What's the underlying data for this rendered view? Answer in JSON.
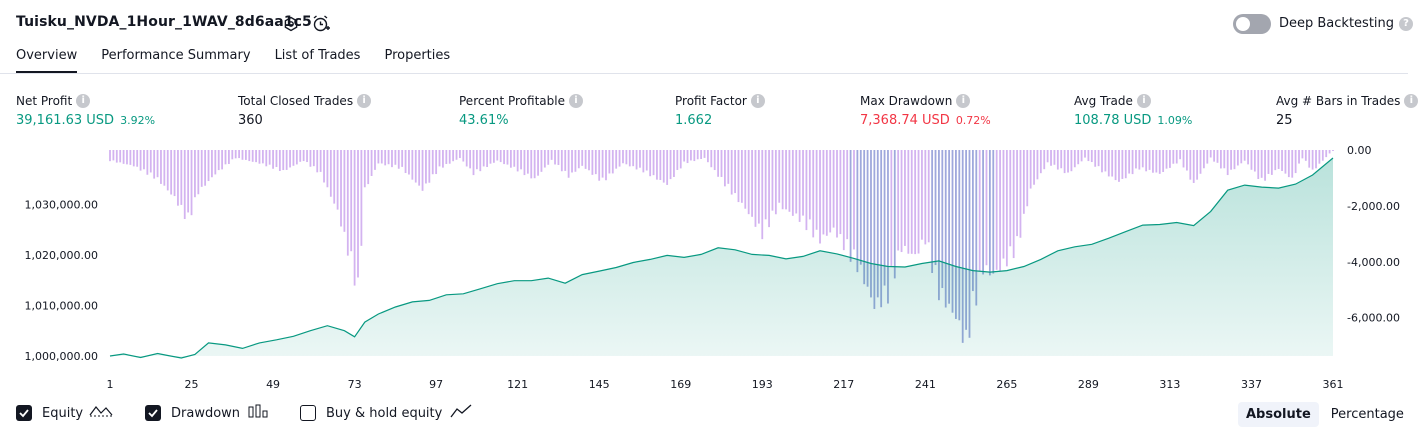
{
  "header": {
    "title": "Tuisku_NVDA_1Hour_1WAV_8d6aa1c5",
    "deep_backtesting_label": "Deep Backtesting"
  },
  "tabs": [
    {
      "label": "Overview",
      "active": true
    },
    {
      "label": "Performance Summary",
      "active": false
    },
    {
      "label": "List of Trades",
      "active": false
    },
    {
      "label": "Properties",
      "active": false
    }
  ],
  "metrics": [
    {
      "label": "Net Profit",
      "value": "39,161.63 USD",
      "pct": "3.92%",
      "color": "#089981"
    },
    {
      "label": "Total Closed Trades",
      "value": "360",
      "pct": "",
      "color": "#131722"
    },
    {
      "label": "Percent Profitable",
      "value": "43.61%",
      "pct": "",
      "color": "#089981"
    },
    {
      "label": "Profit Factor",
      "value": "1.662",
      "pct": "",
      "color": "#089981"
    },
    {
      "label": "Max Drawdown",
      "value": "7,368.74 USD",
      "pct": "0.72%",
      "color": "#f23645"
    },
    {
      "label": "Avg Trade",
      "value": "108.78 USD",
      "pct": "1.09%",
      "color": "#089981"
    },
    {
      "label": "Avg # Bars in Trades",
      "value": "25",
      "pct": "",
      "color": "#131722"
    }
  ],
  "chart_data": {
    "type": "area",
    "equity_axis": {
      "ticks": [
        "1,030,000.00",
        "1,020,000.00",
        "1,010,000.00",
        "1,000,000.00"
      ],
      "range": [
        1000000,
        1039161.63
      ]
    },
    "drawdown_axis": {
      "ticks": [
        "0.00",
        "-2,000.00",
        "-4,000.00",
        "-6,000.00"
      ],
      "range": [
        -7368.74,
        0
      ]
    },
    "x_ticks": [
      "1",
      "25",
      "49",
      "73",
      "97",
      "121",
      "145",
      "169",
      "193",
      "217",
      "241",
      "265",
      "289",
      "313",
      "337",
      "361"
    ],
    "x_range": [
      1,
      361
    ],
    "series": [
      {
        "name": "Equity",
        "color": "#089981",
        "points": [
          [
            1,
            1000000
          ],
          [
            5,
            1000400
          ],
          [
            10,
            999700
          ],
          [
            15,
            1000500
          ],
          [
            18,
            1000100
          ],
          [
            22,
            999600
          ],
          [
            26,
            1000300
          ],
          [
            30,
            1002600
          ],
          [
            35,
            1002200
          ],
          [
            40,
            1001500
          ],
          [
            45,
            1002600
          ],
          [
            50,
            1003200
          ],
          [
            55,
            1003900
          ],
          [
            60,
            1005000
          ],
          [
            65,
            1006000
          ],
          [
            70,
            1005000
          ],
          [
            73,
            1003800
          ],
          [
            76,
            1006700
          ],
          [
            80,
            1008300
          ],
          [
            85,
            1009700
          ],
          [
            90,
            1010700
          ],
          [
            95,
            1011000
          ],
          [
            100,
            1012100
          ],
          [
            105,
            1012300
          ],
          [
            110,
            1013300
          ],
          [
            115,
            1014300
          ],
          [
            120,
            1014900
          ],
          [
            125,
            1014900
          ],
          [
            130,
            1015400
          ],
          [
            135,
            1014400
          ],
          [
            140,
            1016100
          ],
          [
            145,
            1016800
          ],
          [
            150,
            1017500
          ],
          [
            155,
            1018500
          ],
          [
            160,
            1019100
          ],
          [
            165,
            1019900
          ],
          [
            170,
            1019500
          ],
          [
            175,
            1020100
          ],
          [
            180,
            1021400
          ],
          [
            185,
            1021000
          ],
          [
            190,
            1020100
          ],
          [
            195,
            1019900
          ],
          [
            200,
            1019200
          ],
          [
            205,
            1019700
          ],
          [
            210,
            1020800
          ],
          [
            215,
            1020200
          ],
          [
            220,
            1019300
          ],
          [
            225,
            1018300
          ],
          [
            230,
            1017700
          ],
          [
            235,
            1017600
          ],
          [
            240,
            1018300
          ],
          [
            245,
            1018800
          ],
          [
            250,
            1017700
          ],
          [
            255,
            1016900
          ],
          [
            260,
            1016600
          ],
          [
            265,
            1016900
          ],
          [
            270,
            1017700
          ],
          [
            275,
            1019100
          ],
          [
            280,
            1020800
          ],
          [
            285,
            1021600
          ],
          [
            290,
            1022100
          ],
          [
            295,
            1023300
          ],
          [
            300,
            1024600
          ],
          [
            305,
            1025900
          ],
          [
            310,
            1026000
          ],
          [
            315,
            1026400
          ],
          [
            320,
            1025800
          ],
          [
            325,
            1028600
          ],
          [
            330,
            1032800
          ],
          [
            335,
            1033800
          ],
          [
            340,
            1033400
          ],
          [
            345,
            1033200
          ],
          [
            350,
            1034000
          ],
          [
            355,
            1035800
          ],
          [
            361,
            1039161.63
          ]
        ]
      },
      {
        "name": "Drawdown",
        "color": "#c9a3e6",
        "points": [
          [
            1,
            -400
          ],
          [
            8,
            -600
          ],
          [
            15,
            -1100
          ],
          [
            20,
            -1800
          ],
          [
            24,
            -2700
          ],
          [
            27,
            -1600
          ],
          [
            32,
            -900
          ],
          [
            38,
            -300
          ],
          [
            45,
            -500
          ],
          [
            52,
            -800
          ],
          [
            58,
            -400
          ],
          [
            63,
            -900
          ],
          [
            68,
            -2300
          ],
          [
            72,
            -4300
          ],
          [
            74,
            -5400
          ],
          [
            76,
            -1500
          ],
          [
            80,
            -500
          ],
          [
            87,
            -700
          ],
          [
            93,
            -1500
          ],
          [
            98,
            -700
          ],
          [
            104,
            -300
          ],
          [
            108,
            -900
          ],
          [
            115,
            -400
          ],
          [
            120,
            -700
          ],
          [
            126,
            -1100
          ],
          [
            131,
            -400
          ],
          [
            136,
            -1000
          ],
          [
            140,
            -600
          ],
          [
            146,
            -1200
          ],
          [
            152,
            -500
          ],
          [
            158,
            -800
          ],
          [
            165,
            -1300
          ],
          [
            170,
            -500
          ],
          [
            176,
            -300
          ],
          [
            182,
            -1300
          ],
          [
            188,
            -2200
          ],
          [
            193,
            -3200
          ],
          [
            198,
            -2100
          ],
          [
            204,
            -2600
          ],
          [
            210,
            -3400
          ],
          [
            214,
            -3000
          ],
          [
            218,
            -3800
          ],
          [
            222,
            -4600
          ],
          [
            226,
            -5900
          ],
          [
            230,
            -5500
          ],
          [
            234,
            -3700
          ],
          [
            238,
            -4000
          ],
          [
            241,
            -3400
          ],
          [
            245,
            -5400
          ],
          [
            250,
            -6300
          ],
          [
            253,
            -7368.74
          ],
          [
            255,
            -6100
          ],
          [
            258,
            -4500
          ],
          [
            261,
            -4700
          ],
          [
            265,
            -4200
          ],
          [
            268,
            -3700
          ],
          [
            272,
            -1500
          ],
          [
            277,
            -500
          ],
          [
            283,
            -900
          ],
          [
            288,
            -300
          ],
          [
            293,
            -800
          ],
          [
            298,
            -1200
          ],
          [
            304,
            -700
          ],
          [
            310,
            -900
          ],
          [
            316,
            -400
          ],
          [
            320,
            -1300
          ],
          [
            325,
            -300
          ],
          [
            330,
            -900
          ],
          [
            335,
            -400
          ],
          [
            340,
            -1200
          ],
          [
            345,
            -700
          ],
          [
            349,
            -1100
          ],
          [
            352,
            -300
          ],
          [
            355,
            -800
          ],
          [
            358,
            -400
          ],
          [
            361,
            0
          ]
        ]
      }
    ]
  },
  "legend": [
    {
      "label": "Equity",
      "checked": true
    },
    {
      "label": "Drawdown",
      "checked": true
    },
    {
      "label": "Buy & hold equity",
      "checked": false
    }
  ],
  "view_mode": {
    "options": [
      "Absolute",
      "Percentage"
    ],
    "selected": "Absolute"
  }
}
